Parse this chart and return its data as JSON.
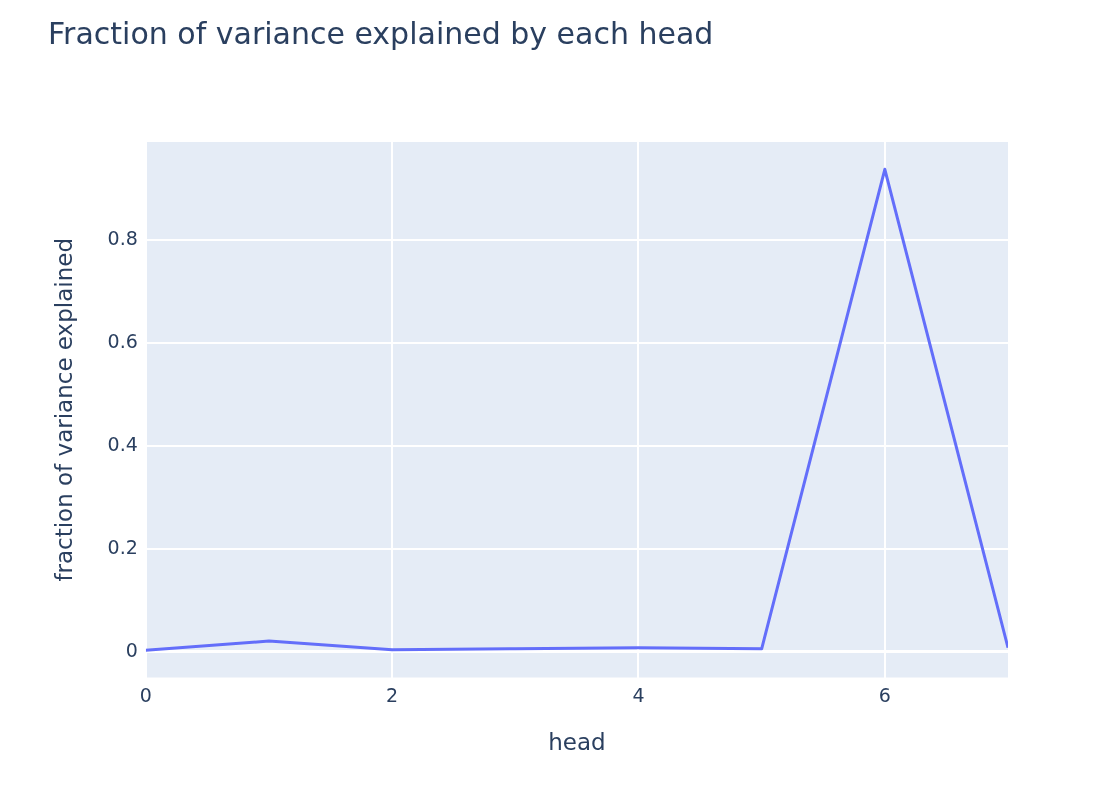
{
  "chart_data": {
    "type": "line",
    "title": "Fraction of variance explained by each head",
    "xlabel": "head",
    "ylabel": "fraction of variance explained",
    "x": [
      0,
      1,
      2,
      3,
      4,
      5,
      6,
      7
    ],
    "series": [
      {
        "color": "#636efa",
        "values": [
          0.003,
          0.021,
          0.004,
          0.006,
          0.008,
          0.006,
          0.937,
          0.008
        ]
      }
    ],
    "xlim": [
      0,
      7
    ],
    "xticks": [
      0,
      2,
      4,
      6
    ],
    "ylim": [
      -0.05,
      0.99
    ],
    "yticks": [
      0,
      0.2,
      0.4,
      0.6,
      0.8
    ],
    "grid": true,
    "legend": false
  }
}
